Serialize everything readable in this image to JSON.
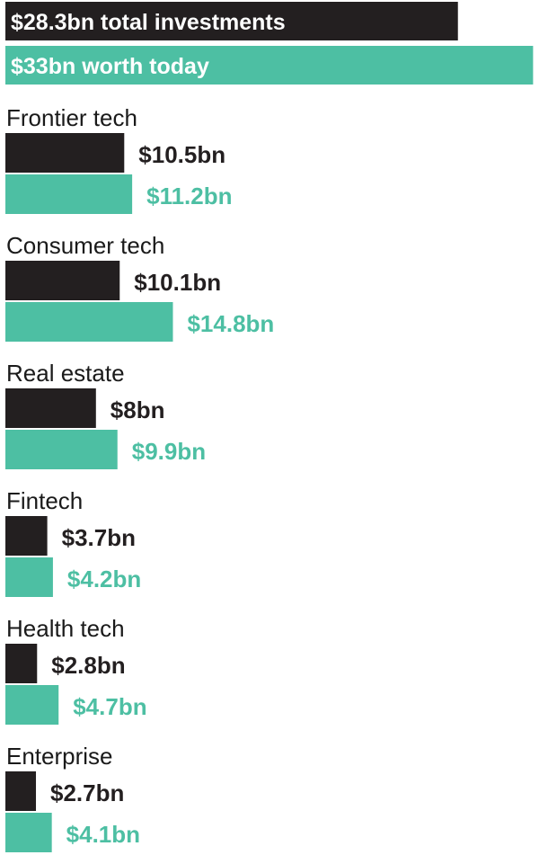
{
  "chart_data": {
    "type": "bar",
    "orientation": "horizontal",
    "units": "$bn",
    "summary": {
      "investments": 28.3,
      "investments_label": "$28.3bn total investments",
      "worth_today": 33,
      "worth_today_label": "$33bn worth today"
    },
    "categories": [
      "Frontier tech",
      "Consumer tech",
      "Real estate",
      "Fintech",
      "Health tech",
      "Enterprise"
    ],
    "series": [
      {
        "key": "investment",
        "values": [
          10.5,
          10.1,
          8,
          3.7,
          2.8,
          2.7
        ],
        "labels": [
          "$10.5bn",
          "$10.1bn",
          "$8bn",
          "$3.7bn",
          "$2.8bn",
          "$2.7bn"
        ]
      },
      {
        "key": "worth",
        "values": [
          11.2,
          14.8,
          9.9,
          4.2,
          4.7,
          4.1
        ],
        "labels": [
          "$11.2bn",
          "$14.8bn",
          "$9.9bn",
          "$4.2bn",
          "$4.7bn",
          "$4.1bn"
        ]
      }
    ],
    "legend": "none",
    "grid": false
  },
  "colors": {
    "investment": "#231f20",
    "worth": "#4dbfa3",
    "text": "#1a1a1a"
  }
}
